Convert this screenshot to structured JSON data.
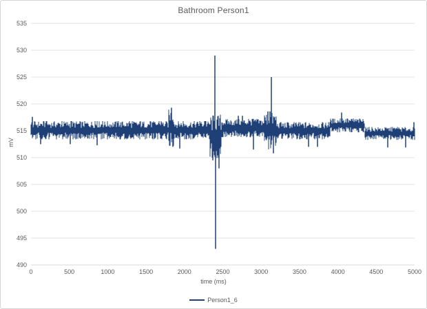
{
  "window": {
    "background": "#FFFFFF",
    "border_color": "#D5D5D5"
  },
  "chart": {
    "title": "Bathroom Person1",
    "y_axis": {
      "title": "mV",
      "ticks": [
        "535",
        "530",
        "525",
        "520",
        "515",
        "510",
        "505",
        "500",
        "495",
        "490"
      ]
    },
    "x_axis": {
      "title": "time (ms)",
      "ticks": [
        "0",
        "500",
        "1000",
        "1500",
        "2000",
        "2500",
        "3000",
        "3500",
        "4000",
        "4500",
        "5000"
      ]
    },
    "legend": {
      "items": [
        {
          "label": "Person1_6",
          "color": "#1F4077"
        }
      ]
    }
  },
  "chart_data": {
    "type": "line",
    "title": "Bathroom Person1",
    "xlabel": "time (ms)",
    "ylabel": "mV",
    "xlim": [
      0,
      5000
    ],
    "ylim": [
      490,
      535
    ],
    "y_tick_step": 5,
    "x_tick_step": 500,
    "grid": "horizontal",
    "legend_position": "bottom",
    "series": [
      {
        "name": "Person1_6",
        "color": "#1F4077",
        "summary": "Dense noisy square-wave style biosignal oscillating around 515 mV (band roughly 513.5-517 mV) across 0-5000 ms, with a large bipolar artifact near 2400 ms spiking up to 529 mV and down to 493 mV, a second spike to 525 mV near 3130 ms, a small spike to about 519 mV near 1830 ms, a slightly elevated band (~515-517 mV) from about 3900-4345 ms, and a slightly lower band (~513.3-515.7 mV) from about 4345-5000 ms.",
        "baseline_mV": 515,
        "envelope_segments": [
          {
            "t0": 0,
            "t1": 1790,
            "min": 513.4,
            "max": 516.8
          },
          {
            "t0": 1790,
            "t1": 1865,
            "min": 512.2,
            "max": 519.0
          },
          {
            "t0": 1865,
            "t1": 2330,
            "min": 513.4,
            "max": 516.8
          },
          {
            "t0": 2330,
            "t1": 2480,
            "min": 509.5,
            "max": 518.0
          },
          {
            "t0": 2480,
            "t1": 3040,
            "min": 513.8,
            "max": 517.2
          },
          {
            "t0": 3040,
            "t1": 3200,
            "min": 511.5,
            "max": 518.4
          },
          {
            "t0": 3200,
            "t1": 3900,
            "min": 513.4,
            "max": 516.6
          },
          {
            "t0": 3900,
            "t1": 4345,
            "min": 514.7,
            "max": 517.3
          },
          {
            "t0": 4345,
            "t1": 5000,
            "min": 513.3,
            "max": 515.7
          }
        ],
        "spike_events": [
          {
            "t": 20,
            "mV": 517.6
          },
          {
            "t": 130,
            "mV": 512.5
          },
          {
            "t": 510,
            "mV": 512.5
          },
          {
            "t": 860,
            "mV": 512.3
          },
          {
            "t": 1830,
            "mV": 519.3
          },
          {
            "t": 1845,
            "mV": 512.0
          },
          {
            "t": 1935,
            "mV": 511.7
          },
          {
            "t": 2370,
            "mV": 509.5
          },
          {
            "t": 2400,
            "mV": 529.0
          },
          {
            "t": 2408,
            "mV": 493.0
          },
          {
            "t": 2450,
            "mV": 508.0
          },
          {
            "t": 2700,
            "mV": 517.8
          },
          {
            "t": 2760,
            "mV": 517.8
          },
          {
            "t": 2900,
            "mV": 511.5
          },
          {
            "t": 3090,
            "mV": 518.6
          },
          {
            "t": 3115,
            "mV": 518.6
          },
          {
            "t": 3130,
            "mV": 525.0
          },
          {
            "t": 3160,
            "mV": 510.8
          },
          {
            "t": 3620,
            "mV": 512.0
          },
          {
            "t": 3730,
            "mV": 512.0
          },
          {
            "t": 4050,
            "mV": 518.4
          },
          {
            "t": 4650,
            "mV": 511.9
          },
          {
            "t": 4880,
            "mV": 511.9
          },
          {
            "t": 4990,
            "mV": 516.6
          }
        ]
      }
    ]
  },
  "colors": {
    "series": "#1F4077",
    "gridline": "#E2E2E2",
    "axis_line": "#D9D9D9",
    "text": "#595959"
  }
}
